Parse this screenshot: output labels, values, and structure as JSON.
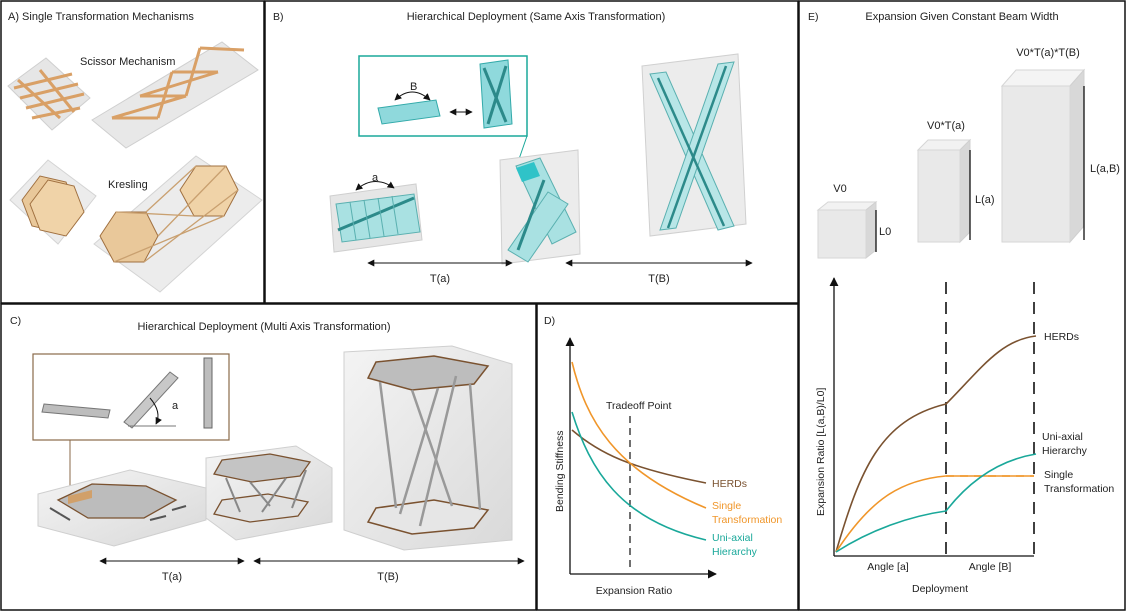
{
  "panel_a": {
    "title": "A)  Single Transformation Mechanisms",
    "scissor_label": "Scissor Mechanism",
    "kresling_label": "Kresling"
  },
  "panel_b": {
    "title": "B)",
    "heading": "Hierarchical Deployment (Same Axis Transformation)",
    "inset_label": "B",
    "rotation_label": "a",
    "arrow1_label": "T(a)",
    "arrow2_label": "T(B)"
  },
  "panel_c": {
    "title": "C)",
    "heading": "Hierarchical Deployment (Multi Axis Transformation)",
    "inset_label": "a",
    "arrow1_label": "T(a)",
    "arrow2_label": "T(B)"
  },
  "panel_d": {
    "title": "D)",
    "ylabel": "Bending Stiffness",
    "xlabel": "Expansion Ratio",
    "tradeoff_label": "Tradeoff Point",
    "series": [
      {
        "name": "HERDs",
        "color": "#7a5230"
      },
      {
        "name_lines": [
          "Single",
          "Transformation"
        ],
        "color": "#f0962a"
      },
      {
        "name_lines": [
          "Uni-axial",
          "Hierarchy"
        ],
        "color": "#1aa89a"
      }
    ]
  },
  "panel_e": {
    "title": "E)",
    "heading": "Expansion Given Constant Beam Width",
    "box1_label": "V0",
    "box1_dim": "L0",
    "box2_label": "V0*T(a)",
    "box2_dim": "L(a)",
    "box3_label": "V0*T(a)*T(B)",
    "box3_dim": "L(a,B)",
    "ylabel": "Expansion Ratio [L(a,B)/L0]",
    "xlabel": "Deployment",
    "xtick1": "Angle [a]",
    "xtick2": "Angle [B]",
    "series": [
      {
        "name": "HERDs",
        "color": "#7a5230"
      },
      {
        "name_lines": [
          "Uni-axial",
          "Hierarchy"
        ],
        "color": "#1aa89a"
      },
      {
        "name_lines": [
          "Single",
          "Transformation"
        ],
        "color": "#f0962a"
      }
    ]
  }
}
